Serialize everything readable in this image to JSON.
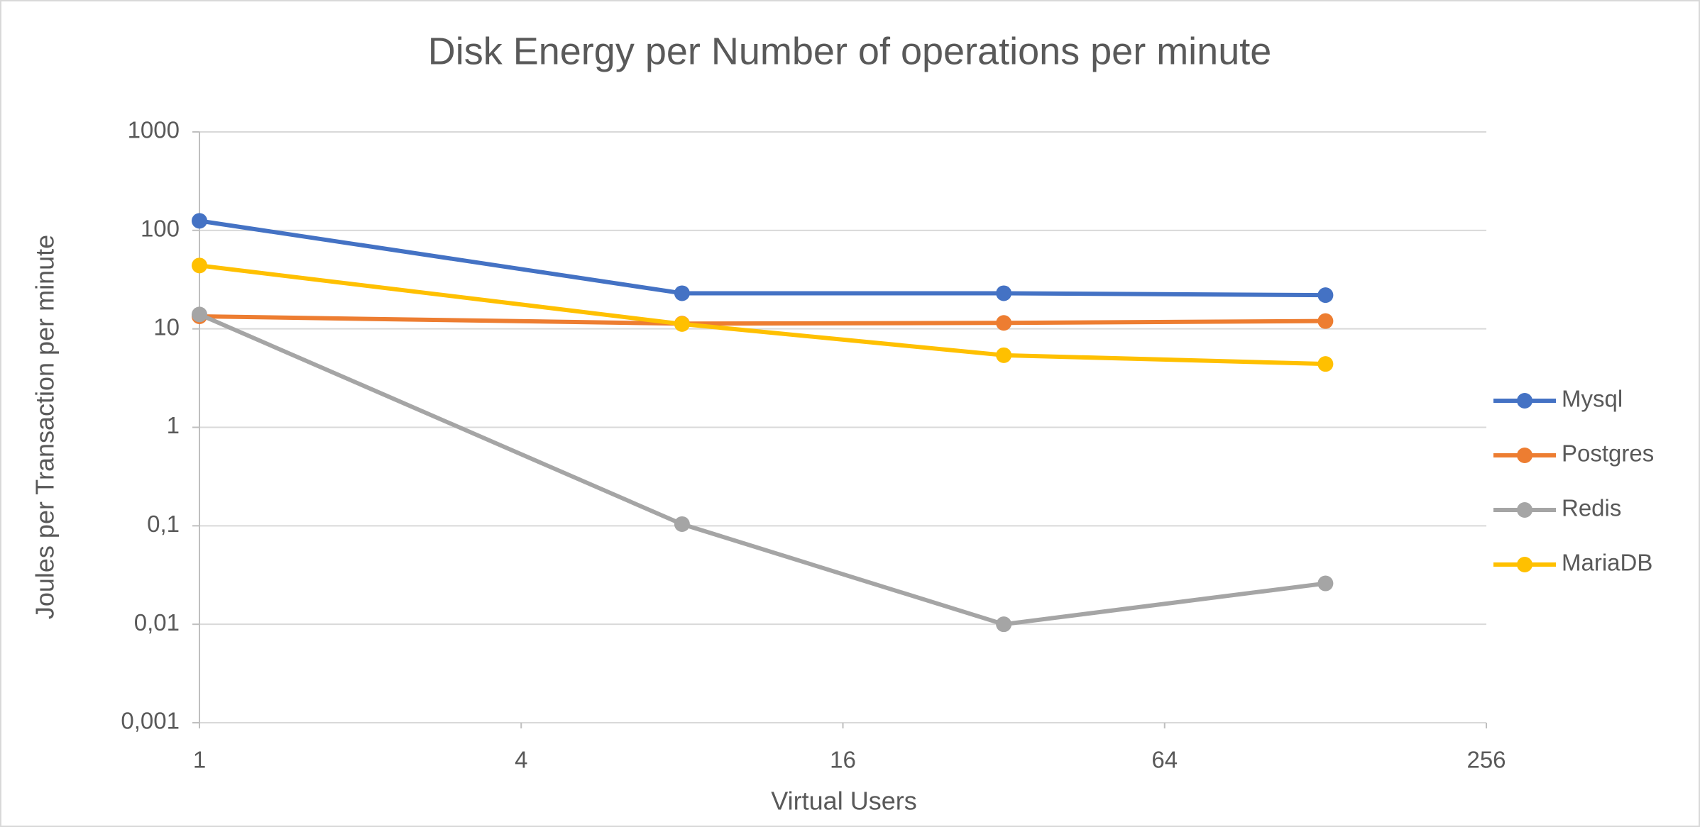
{
  "chart_data": {
    "type": "line",
    "title": "Disk Energy per Number of operations per minute",
    "x_label": "Virtual Users",
    "y_label": "Joules per Transaction per minute",
    "x": [
      1,
      8,
      32,
      128
    ],
    "series": [
      {
        "name": "Mysql",
        "color": "#4472c4",
        "values": [
          125,
          23,
          23,
          22
        ]
      },
      {
        "name": "Postgres",
        "color": "#ed7d31",
        "values": [
          13.4,
          11.3,
          11.5,
          12
        ]
      },
      {
        "name": "Redis",
        "color": "#a5a5a5",
        "values": [
          14,
          0.104,
          0.01,
          0.026
        ]
      },
      {
        "name": "MariaDB",
        "color": "#ffc000",
        "values": [
          44,
          11.2,
          5.4,
          4.4
        ]
      }
    ],
    "xlim": [
      1,
      256
    ],
    "xticks": [
      1,
      4,
      16,
      64,
      256
    ],
    "x_log_base": 2,
    "ylim": [
      0.001,
      1000
    ],
    "yticks": [
      {
        "value": 0.001,
        "label": "0,001"
      },
      {
        "value": 0.01,
        "label": "0,01"
      },
      {
        "value": 0.1,
        "label": "0,1"
      },
      1,
      10,
      100,
      1000
    ],
    "y_log_base": 10,
    "grid": true,
    "legend": "right"
  }
}
